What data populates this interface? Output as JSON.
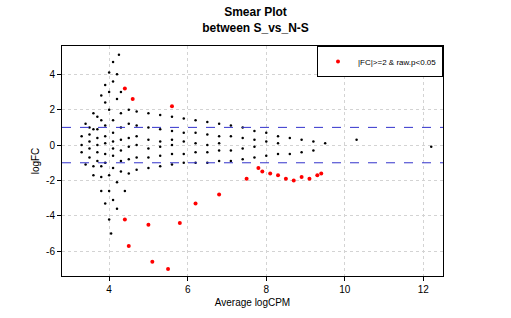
{
  "chart_data": {
    "type": "scatter",
    "title": "Smear Plot\nbetween S_vs_N-S",
    "x_label": "Average logCPM",
    "y_label": "logFC",
    "xlim": [
      2.8,
      12.5
    ],
    "xticks": [
      4,
      6,
      8,
      10,
      12
    ],
    "ylim": [
      -7.4,
      5.6
    ],
    "yticks": [
      -6,
      -4,
      -2,
      0,
      2,
      4
    ],
    "grid": true,
    "legend": "top right",
    "marker": "circle",
    "reference_lines": {
      "values": [
        1,
        -1
      ],
      "color": "#3333cc",
      "line_style": "dashed"
    },
    "series": [
      {
        "color": "#000000",
        "x": [
          3.4,
          3.6,
          3.8,
          3.9,
          4.0,
          4.1,
          3.5,
          3.7,
          3.9,
          4.0,
          4.1,
          4.2,
          3.6,
          3.8,
          4.0,
          4.2,
          4.3,
          3.4,
          3.6,
          3.8,
          3.9,
          4.0,
          4.05,
          3.6,
          3.8,
          4.0,
          4.1,
          4.2,
          3.8,
          4.0,
          4.2,
          4.4,
          4.25,
          10.3,
          12.2,
          3.3,
          3.3,
          3.3,
          3.5,
          3.5,
          3.5,
          3.5,
          3.7,
          3.7,
          3.7,
          3.7,
          3.7,
          3.9,
          3.9,
          3.9,
          3.9,
          3.9,
          4.1,
          4.1,
          4.1,
          4.1,
          4.1,
          4.1,
          4.3,
          4.3,
          4.3,
          4.3,
          4.3,
          4.3,
          4.5,
          4.5,
          4.5,
          4.5,
          4.5,
          4.5,
          4.7,
          4.7,
          4.7,
          4.7,
          4.7,
          4.7,
          5.0,
          5.0,
          5.0,
          5.0,
          5.0,
          5.0,
          5.3,
          5.3,
          5.3,
          5.3,
          5.3,
          5.3,
          5.6,
          5.6,
          5.6,
          5.6,
          5.6,
          5.6,
          5.9,
          5.9,
          5.9,
          5.9,
          5.9,
          6.2,
          6.2,
          6.2,
          6.2,
          6.2,
          6.5,
          6.5,
          6.5,
          6.5,
          6.5,
          6.8,
          6.8,
          6.8,
          6.8,
          6.8,
          7.1,
          7.1,
          7.1,
          7.1,
          7.4,
          7.4,
          7.4,
          7.4,
          7.7,
          7.7,
          7.7,
          7.7,
          8.0,
          8.0,
          8.0,
          8.3,
          8.3,
          8.3,
          8.6,
          8.6,
          8.9,
          8.9,
          9.2,
          9.2,
          9.5
        ],
        "values": [
          1.2,
          1.8,
          2.8,
          3.4,
          4.1,
          4.7,
          1.0,
          1.6,
          2.4,
          3.0,
          3.6,
          4.0,
          0.9,
          1.4,
          2.0,
          2.6,
          3.0,
          -1.1,
          -1.7,
          -2.6,
          -3.3,
          -4.2,
          -5.0,
          -1.2,
          -1.8,
          -2.6,
          -3.1,
          -3.6,
          -1.2,
          -1.7,
          -2.1,
          -2.6,
          5.1,
          0.3,
          -0.1,
          0.5,
          -0.4,
          0.0,
          0.6,
          -0.7,
          0.2,
          -0.2,
          0.9,
          -0.9,
          0.4,
          -0.4,
          0.0,
          1.1,
          -1.0,
          0.5,
          -0.5,
          0.1,
          1.4,
          -1.3,
          0.7,
          -0.6,
          0.2,
          -0.2,
          1.8,
          -1.5,
          1.0,
          -0.9,
          0.3,
          -0.3,
          2.0,
          -1.6,
          1.2,
          -0.8,
          0.4,
          -0.1,
          1.9,
          -1.4,
          1.1,
          -0.7,
          0.5,
          0.0,
          1.8,
          -1.3,
          1.0,
          -0.7,
          0.3,
          -0.2,
          1.7,
          -1.2,
          0.9,
          -0.6,
          0.2,
          -0.1,
          1.6,
          -1.1,
          0.8,
          -0.5,
          0.3,
          0.0,
          1.5,
          -1.0,
          0.7,
          -0.5,
          0.2,
          1.4,
          -1.0,
          0.7,
          -0.4,
          0.1,
          1.3,
          -1.0,
          0.6,
          -0.4,
          0.0,
          1.2,
          -0.9,
          0.5,
          -0.3,
          0.1,
          1.1,
          -0.9,
          0.5,
          -0.3,
          1.0,
          -0.8,
          0.4,
          -0.2,
          0.8,
          -0.7,
          0.3,
          -0.1,
          0.7,
          -0.6,
          0.2,
          0.5,
          -0.5,
          0.1,
          0.4,
          -0.5,
          0.3,
          -0.4,
          0.2,
          -0.3,
          0.1
        ]
      },
      {
        "name": "|FC|>=2 & raw.p<0.05",
        "color": "#ff0000",
        "x": [
          4.4,
          4.6,
          5.6,
          5.0,
          4.4,
          4.5,
          5.1,
          5.5,
          5.8,
          6.2,
          6.8,
          7.5,
          7.8,
          7.9,
          8.1,
          8.3,
          8.5,
          8.7,
          8.9,
          9.1,
          9.3,
          9.4
        ],
        "values": [
          3.2,
          2.6,
          2.2,
          -4.5,
          -4.2,
          -5.7,
          -6.6,
          -7.0,
          -4.4,
          -3.3,
          -2.8,
          -1.9,
          -1.3,
          -1.5,
          -1.6,
          -1.7,
          -1.9,
          -2.0,
          -1.8,
          -1.9,
          -1.7,
          -1.6
        ]
      }
    ]
  }
}
